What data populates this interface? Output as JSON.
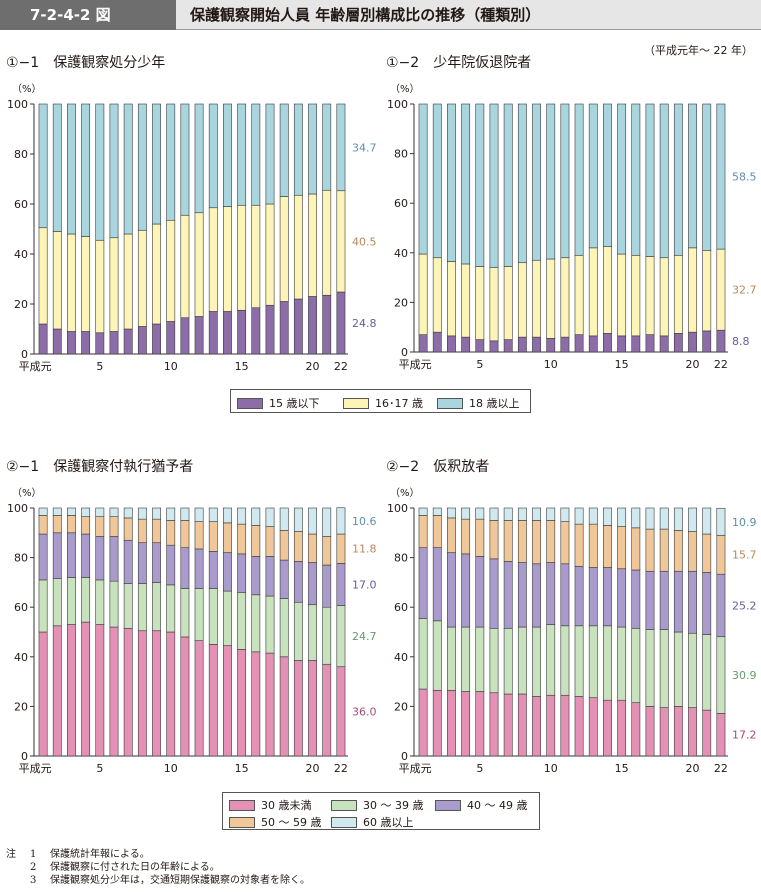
{
  "header": {
    "figure_id": "7-2-4-2 図",
    "title": "保護観察開始人員 年齢層別構成比の推移（種類別）"
  },
  "period_note": "（平成元年～ 22 年）",
  "panels": [
    {
      "title": "①−1　保護観察処分少年",
      "unit": "（%）"
    },
    {
      "title": "①−2　少年院仮退院者",
      "unit": "（%）"
    },
    {
      "title": "②−1　保護観察付執行猶予者",
      "unit": "（%）"
    },
    {
      "title": "②−2　仮釈放者",
      "unit": "（%）"
    }
  ],
  "legend1": [
    "15 歳以下",
    "16･17 歳",
    "18 歳以上"
  ],
  "legend2": [
    "30 歳未満",
    "30 ～ 39 歳",
    "40 ～ 49 歳",
    "50 ～ 59 歳",
    "60 歳以上"
  ],
  "colors": {
    "c1": [
      "#8c6da8",
      "#fdf4b8",
      "#a9d5df"
    ],
    "c2": [
      "#e591b6",
      "#c8e2bd",
      "#a99bcb",
      "#f0c798",
      "#cfe9ef"
    ],
    "end_label_colors": [
      "#6a5b9e",
      "#b8895e",
      "#5e8fad",
      "#6a9a6e",
      "#a64d79"
    ]
  },
  "notes": {
    "lead": "注",
    "items": [
      {
        "num": "1",
        "text": "保護統計年報による。"
      },
      {
        "num": "2",
        "text": "保護観察に付された日の年齢による。"
      },
      {
        "num": "3",
        "text": "保護観察処分少年は，交通短期保護観察の対象者を除く。"
      }
    ]
  },
  "chart_data": [
    {
      "type": "bar",
      "stacked": true,
      "title": "①−1　保護観察処分少年",
      "ylabel": "（%）",
      "ylim": [
        0,
        100
      ],
      "yticks": [
        0,
        20,
        40,
        60,
        80,
        100
      ],
      "categories": [
        "平成元",
        "2",
        "3",
        "4",
        "5",
        "6",
        "7",
        "8",
        "9",
        "10",
        "11",
        "12",
        "13",
        "14",
        "15",
        "16",
        "17",
        "18",
        "19",
        "20",
        "21",
        "22"
      ],
      "x_tick_labels": {
        "0": "平成元",
        "4": "5",
        "9": "10",
        "14": "15",
        "19": "20",
        "21": "22"
      },
      "series": [
        {
          "name": "15 歳以下",
          "values": [
            12,
            10,
            9,
            9,
            8.5,
            9,
            10,
            11,
            12,
            13,
            14.5,
            15,
            17,
            17,
            17.5,
            18.5,
            19.5,
            21,
            22,
            23,
            23.5,
            24.8
          ]
        },
        {
          "name": "16･17 歳",
          "values": [
            38.5,
            39,
            39,
            38,
            37,
            37.5,
            38,
            38.5,
            40,
            40.5,
            41,
            41.5,
            41.5,
            42,
            42,
            41,
            40.5,
            42,
            41.5,
            41,
            42,
            40.5
          ]
        },
        {
          "name": "18 歳以上",
          "values": [
            49.5,
            51,
            52,
            53,
            54.5,
            53.5,
            52,
            50.5,
            48,
            46.5,
            44.5,
            43.5,
            41.5,
            41,
            40.5,
            40.5,
            40,
            37,
            36.5,
            36,
            34.5,
            34.7
          ]
        }
      ],
      "end_labels": [
        "24.8",
        "40.5",
        "34.7"
      ]
    },
    {
      "type": "bar",
      "stacked": true,
      "title": "①−2　少年院仮退院者",
      "ylabel": "（%）",
      "ylim": [
        0,
        100
      ],
      "yticks": [
        0,
        20,
        40,
        60,
        80,
        100
      ],
      "categories": [
        "平成元",
        "2",
        "3",
        "4",
        "5",
        "6",
        "7",
        "8",
        "9",
        "10",
        "11",
        "12",
        "13",
        "14",
        "15",
        "16",
        "17",
        "18",
        "19",
        "20",
        "21",
        "22"
      ],
      "x_tick_labels": {
        "0": "平成元",
        "4": "5",
        "9": "10",
        "14": "15",
        "19": "20",
        "21": "22"
      },
      "series": [
        {
          "name": "15 歳以下",
          "values": [
            7,
            8,
            6.5,
            6,
            5,
            4.5,
            5,
            6,
            6,
            5.5,
            6,
            7,
            6.5,
            7.5,
            6.5,
            6.5,
            7,
            6.5,
            7.5,
            8,
            8.5,
            8.8
          ]
        },
        {
          "name": "16･17 歳",
          "values": [
            32.5,
            30,
            30,
            29.5,
            29.5,
            29.5,
            29.5,
            30,
            31,
            32,
            32,
            32,
            35.5,
            35,
            33,
            32.5,
            31.5,
            31.5,
            31.5,
            34,
            32.5,
            32.7
          ]
        },
        {
          "name": "18 歳以上",
          "values": [
            60.5,
            62,
            63.5,
            64.5,
            65.5,
            66,
            65.5,
            64,
            63,
            62.5,
            62,
            61,
            58,
            57.5,
            60.5,
            61,
            61.5,
            62,
            61,
            58,
            59,
            58.5
          ]
        }
      ],
      "end_labels": [
        "8.8",
        "32.7",
        "58.5"
      ]
    },
    {
      "type": "bar",
      "stacked": true,
      "title": "②−1　保護観察付執行猶予者",
      "ylabel": "（%）",
      "ylim": [
        0,
        100
      ],
      "yticks": [
        0,
        20,
        40,
        60,
        80,
        100
      ],
      "categories": [
        "平成元",
        "2",
        "3",
        "4",
        "5",
        "6",
        "7",
        "8",
        "9",
        "10",
        "11",
        "12",
        "13",
        "14",
        "15",
        "16",
        "17",
        "18",
        "19",
        "20",
        "21",
        "22"
      ],
      "x_tick_labels": {
        "0": "平成元",
        "4": "5",
        "9": "10",
        "14": "15",
        "19": "20",
        "21": "22"
      },
      "series": [
        {
          "name": "30 歳未満",
          "values": [
            50,
            52.5,
            53,
            54,
            53,
            52,
            51.5,
            50.5,
            50.5,
            50,
            48,
            46.5,
            45,
            44.5,
            43,
            42,
            41.5,
            40,
            38.5,
            38.5,
            37,
            36
          ]
        },
        {
          "name": "30 ～ 39 歳",
          "values": [
            21,
            19,
            19,
            18,
            18,
            18.5,
            18,
            19,
            19.5,
            19,
            19.5,
            21,
            22.5,
            22,
            23,
            23,
            23,
            23.5,
            23.5,
            22.5,
            23,
            24.7
          ]
        },
        {
          "name": "40 ～ 49 歳",
          "values": [
            18.5,
            18.5,
            18,
            17.5,
            17.5,
            18,
            17.5,
            16.5,
            16,
            16,
            16.5,
            16,
            15,
            15.5,
            15.5,
            15.5,
            16,
            15.5,
            16.5,
            17,
            17,
            17
          ]
        },
        {
          "name": "50 ～ 59 歳",
          "values": [
            7.5,
            7,
            7,
            7,
            8,
            8,
            9,
            9.5,
            9.5,
            10,
            11,
            11,
            12,
            12,
            12,
            12.5,
            12,
            12,
            12,
            11.5,
            11.5,
            11.8
          ]
        },
        {
          "name": "60 歳以上",
          "values": [
            3,
            3,
            3,
            3.5,
            3.5,
            3.5,
            4,
            4.5,
            4.5,
            5,
            5,
            5.5,
            5.5,
            6,
            6.5,
            7,
            7.5,
            9,
            9.5,
            10.5,
            11.5,
            10.6
          ]
        }
      ],
      "end_labels": [
        "36.0",
        "24.7",
        "17.0",
        "11.8",
        "10.6"
      ]
    },
    {
      "type": "bar",
      "stacked": true,
      "title": "②−2　仮釈放者",
      "ylabel": "（%）",
      "ylim": [
        0,
        100
      ],
      "yticks": [
        0,
        20,
        40,
        60,
        80,
        100
      ],
      "categories": [
        "平成元",
        "2",
        "3",
        "4",
        "5",
        "6",
        "7",
        "8",
        "9",
        "10",
        "11",
        "12",
        "13",
        "14",
        "15",
        "16",
        "17",
        "18",
        "19",
        "20",
        "21",
        "22"
      ],
      "x_tick_labels": {
        "0": "平成元",
        "4": "5",
        "9": "10",
        "14": "15",
        "19": "20",
        "21": "22"
      },
      "series": [
        {
          "name": "30 歳未満",
          "values": [
            27,
            26.5,
            26.5,
            26,
            26,
            25.5,
            25,
            25,
            24,
            24.5,
            24.5,
            24,
            23.5,
            22.5,
            22.5,
            21.5,
            20,
            19.5,
            20,
            19.5,
            18.5,
            17.2
          ]
        },
        {
          "name": "30 ～ 39 歳",
          "values": [
            28.5,
            28,
            25.5,
            26,
            26,
            26,
            26.5,
            27,
            28,
            28.5,
            28,
            28.5,
            29,
            30,
            29.5,
            30,
            31,
            31.5,
            30,
            30,
            30.5,
            30.9
          ]
        },
        {
          "name": "40 ～ 49 歳",
          "values": [
            28.5,
            29.5,
            30,
            29.5,
            28.5,
            28,
            27,
            26,
            25.5,
            25,
            25,
            24,
            23.5,
            23.5,
            23.5,
            23.5,
            23.5,
            23.5,
            24.5,
            25,
            25,
            25.2
          ]
        },
        {
          "name": "50 ～ 59 歳",
          "values": [
            13,
            13,
            14,
            14,
            15,
            15.5,
            16.5,
            17,
            17.5,
            17,
            17,
            17,
            17.5,
            17,
            17,
            17,
            17,
            17,
            16.5,
            16,
            15.5,
            15.7
          ]
        },
        {
          "name": "60 歳以上",
          "values": [
            3,
            3,
            4,
            4.5,
            4.5,
            5,
            5,
            5,
            5,
            5,
            5.5,
            6.5,
            6.5,
            7,
            7.5,
            8,
            8.5,
            8.5,
            9,
            9.5,
            10.5,
            10.9
          ]
        }
      ],
      "end_labels": [
        "17.2",
        "30.9",
        "25.2",
        "15.7",
        "10.9"
      ]
    }
  ]
}
